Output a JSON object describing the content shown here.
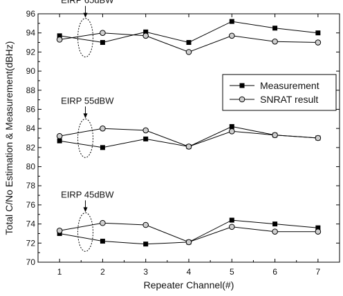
{
  "chart_data": {
    "type": "line",
    "xlabel": "Repeater Channel(#)",
    "ylabel": "Total C/No Estimation & Measurement(dBHz)",
    "xlim": [
      0.5,
      7.5
    ],
    "ylim": [
      70,
      96
    ],
    "xticks": [
      1,
      2,
      3,
      4,
      5,
      6,
      7
    ],
    "yticks": [
      70,
      72,
      74,
      76,
      78,
      80,
      82,
      84,
      86,
      88,
      90,
      92,
      94,
      96
    ],
    "grid": false,
    "legend": {
      "placement": "right-middle",
      "entries": [
        "Measurement",
        "SNRAT result"
      ]
    },
    "annotations": [
      "EIRP 65dBW",
      "EIRP 55dBW",
      "EIRP 45dBW"
    ],
    "series": [
      {
        "name": "Measurement",
        "group": "EIRP 65dBW",
        "marker": "filled-square",
        "x": [
          1,
          2,
          3,
          4,
          5,
          6,
          7
        ],
        "values": [
          93.7,
          93.0,
          94.1,
          93.0,
          95.2,
          94.5,
          94.0
        ]
      },
      {
        "name": "SNRAT result",
        "group": "EIRP 65dBW",
        "marker": "open-circle",
        "x": [
          1,
          2,
          3,
          4,
          5,
          6,
          7
        ],
        "values": [
          93.3,
          94.0,
          93.7,
          92.0,
          93.7,
          93.1,
          93.0
        ]
      },
      {
        "name": "Measurement",
        "group": "EIRP 55dBW",
        "marker": "filled-square",
        "x": [
          1,
          2,
          3,
          4,
          5,
          6,
          7
        ],
        "values": [
          82.7,
          82.0,
          82.9,
          82.1,
          84.2,
          83.3,
          83.0
        ]
      },
      {
        "name": "SNRAT result",
        "group": "EIRP 55dBW",
        "marker": "open-circle",
        "x": [
          1,
          2,
          3,
          4,
          5,
          6,
          7
        ],
        "values": [
          83.2,
          84.0,
          83.8,
          82.1,
          83.7,
          83.3,
          83.0
        ]
      },
      {
        "name": "Measurement",
        "group": "EIRP 45dBW",
        "marker": "filled-square",
        "x": [
          1,
          2,
          3,
          4,
          5,
          6,
          7
        ],
        "values": [
          73.0,
          72.2,
          71.9,
          72.1,
          74.4,
          74.0,
          73.6
        ]
      },
      {
        "name": "SNRAT result",
        "group": "EIRP 45dBW",
        "marker": "open-circle",
        "x": [
          1,
          2,
          3,
          4,
          5,
          6,
          7
        ],
        "values": [
          73.3,
          74.1,
          73.9,
          72.1,
          73.7,
          73.2,
          73.2
        ]
      }
    ],
    "colors": {
      "line": "#000000",
      "open_marker_fill": "#cfcfcf"
    }
  }
}
